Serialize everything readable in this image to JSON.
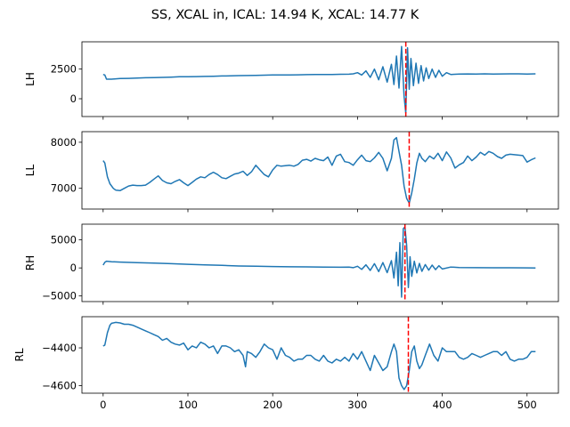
{
  "figure": {
    "title": "SS, XCAL in, ICAL: 14.94 K, XCAL: 14.77 K"
  },
  "chart_data": [
    {
      "type": "line",
      "ylabel": "LH",
      "xlim": [
        -25,
        537
      ],
      "ylim": [
        -1500,
        4800
      ],
      "yticks": [
        0,
        2500
      ],
      "show_xtick_labels": false,
      "marker_x": 357,
      "series_color": "#1f77b4",
      "marker_color": "#ff0000",
      "series": [
        {
          "x": [
            0,
            2,
            4,
            10,
            20,
            30,
            40,
            50,
            60,
            70,
            80,
            90,
            100,
            110,
            120,
            130,
            140,
            150,
            160,
            170,
            180,
            190,
            200,
            210,
            220,
            230,
            240,
            250,
            260,
            270,
            280,
            290,
            295,
            300,
            305,
            310,
            315,
            320,
            325,
            330,
            335,
            340,
            343,
            346,
            349,
            352,
            355,
            357,
            359,
            361,
            363,
            366,
            369,
            372,
            375,
            378,
            381,
            384,
            388,
            392,
            396,
            400,
            405,
            410,
            420,
            430,
            440,
            450,
            460,
            470,
            480,
            490,
            500,
            510
          ],
          "y": [
            2050,
            2000,
            1650,
            1650,
            1700,
            1720,
            1750,
            1770,
            1780,
            1800,
            1820,
            1850,
            1860,
            1870,
            1880,
            1900,
            1920,
            1930,
            1950,
            1960,
            1970,
            1990,
            2000,
            2000,
            2010,
            2020,
            2030,
            2040,
            2050,
            2050,
            2060,
            2070,
            2100,
            2200,
            2000,
            2350,
            1800,
            2500,
            1600,
            2700,
            1400,
            2900,
            1200,
            3600,
            900,
            4400,
            200,
            -1200,
            4300,
            800,
            3400,
            1100,
            3000,
            1300,
            2800,
            1500,
            2600,
            1700,
            2500,
            1800,
            2400,
            1900,
            2200,
            2050,
            2080,
            2090,
            2080,
            2100,
            2080,
            2090,
            2100,
            2100,
            2080,
            2100
          ]
        }
      ]
    },
    {
      "type": "line",
      "ylabel": "LL",
      "xlim": [
        -25,
        537
      ],
      "ylim": [
        6550,
        8230
      ],
      "yticks": [
        7000,
        8000
      ],
      "show_xtick_labels": false,
      "marker_x": 361,
      "series_color": "#1f77b4",
      "marker_color": "#ff0000",
      "series": [
        {
          "x": [
            0,
            2,
            5,
            8,
            12,
            15,
            20,
            25,
            30,
            35,
            40,
            45,
            50,
            55,
            60,
            65,
            70,
            75,
            80,
            85,
            90,
            95,
            100,
            105,
            110,
            115,
            120,
            125,
            130,
            135,
            140,
            145,
            150,
            155,
            160,
            165,
            170,
            175,
            180,
            185,
            190,
            195,
            200,
            205,
            210,
            215,
            220,
            225,
            230,
            235,
            240,
            245,
            250,
            255,
            260,
            265,
            270,
            275,
            280,
            285,
            290,
            295,
            300,
            305,
            310,
            315,
            320,
            325,
            330,
            335,
            340,
            343,
            346,
            349,
            352,
            355,
            358,
            361,
            364,
            367,
            370,
            373,
            376,
            380,
            385,
            390,
            395,
            400,
            405,
            410,
            415,
            420,
            425,
            430,
            435,
            440,
            445,
            450,
            455,
            460,
            465,
            470,
            475,
            480,
            485,
            490,
            495,
            500,
            505,
            510
          ],
          "y": [
            7600,
            7550,
            7250,
            7100,
            7000,
            6960,
            6950,
            7000,
            7050,
            7070,
            7060,
            7060,
            7070,
            7130,
            7200,
            7270,
            7170,
            7120,
            7100,
            7150,
            7190,
            7120,
            7060,
            7130,
            7200,
            7250,
            7230,
            7300,
            7350,
            7300,
            7230,
            7210,
            7260,
            7310,
            7330,
            7370,
            7280,
            7360,
            7500,
            7400,
            7300,
            7250,
            7400,
            7500,
            7480,
            7490,
            7500,
            7480,
            7520,
            7610,
            7630,
            7590,
            7650,
            7620,
            7600,
            7680,
            7500,
            7700,
            7740,
            7580,
            7560,
            7500,
            7620,
            7720,
            7600,
            7580,
            7660,
            7780,
            7650,
            7380,
            7650,
            8050,
            8100,
            7800,
            7500,
            7050,
            6780,
            6680,
            6900,
            7200,
            7550,
            7760,
            7650,
            7580,
            7700,
            7640,
            7760,
            7600,
            7790,
            7660,
            7440,
            7510,
            7560,
            7700,
            7600,
            7680,
            7780,
            7720,
            7800,
            7760,
            7690,
            7650,
            7720,
            7740,
            7730,
            7720,
            7710,
            7570,
            7620,
            7660
          ]
        }
      ]
    },
    {
      "type": "line",
      "ylabel": "RH",
      "xlim": [
        -25,
        537
      ],
      "ylim": [
        -6000,
        7800
      ],
      "yticks": [
        -5000,
        0,
        5000
      ],
      "show_xtick_labels": false,
      "marker_x": 356,
      "series_color": "#1f77b4",
      "marker_color": "#ff0000",
      "series": [
        {
          "x": [
            0,
            2,
            4,
            10,
            20,
            40,
            60,
            80,
            100,
            120,
            140,
            160,
            180,
            200,
            220,
            240,
            260,
            280,
            290,
            295,
            300,
            305,
            310,
            315,
            320,
            325,
            330,
            335,
            340,
            343,
            346,
            348,
            350,
            352,
            354,
            356,
            358,
            360,
            362,
            364,
            367,
            370,
            373,
            376,
            380,
            384,
            388,
            392,
            396,
            400,
            410,
            420,
            440,
            460,
            480,
            500,
            510
          ],
          "y": [
            500,
            1000,
            1200,
            1100,
            1050,
            950,
            850,
            750,
            650,
            550,
            450,
            350,
            300,
            250,
            200,
            180,
            150,
            130,
            160,
            40,
            300,
            -250,
            550,
            -450,
            750,
            -650,
            950,
            -850,
            1300,
            -1800,
            2800,
            -3200,
            4500,
            -5200,
            7000,
            7300,
            4000,
            -3500,
            2000,
            -1500,
            1200,
            -900,
            800,
            -600,
            600,
            -400,
            500,
            -300,
            400,
            -200,
            150,
            80,
            50,
            30,
            20,
            10,
            0
          ]
        }
      ]
    },
    {
      "type": "line",
      "ylabel": "RL",
      "xlim": [
        -25,
        537
      ],
      "ylim": [
        -4640,
        -4235
      ],
      "yticks": [
        -4600,
        -4400
      ],
      "show_xtick_labels": true,
      "xticks": [
        0,
        100,
        200,
        300,
        400,
        500
      ],
      "marker_x": 360,
      "series_color": "#1f77b4",
      "marker_color": "#ff0000",
      "series": [
        {
          "x": [
            0,
            2,
            5,
            8,
            10,
            15,
            20,
            25,
            30,
            35,
            40,
            45,
            50,
            55,
            60,
            65,
            70,
            75,
            80,
            85,
            90,
            95,
            100,
            105,
            110,
            115,
            120,
            125,
            130,
            135,
            140,
            145,
            150,
            155,
            160,
            165,
            168,
            170,
            175,
            180,
            185,
            190,
            195,
            200,
            205,
            210,
            215,
            220,
            225,
            230,
            235,
            240,
            245,
            250,
            255,
            260,
            265,
            270,
            275,
            280,
            285,
            290,
            295,
            300,
            305,
            310,
            315,
            320,
            325,
            330,
            335,
            340,
            343,
            346,
            349,
            352,
            355,
            358,
            361,
            364,
            367,
            370,
            373,
            376,
            380,
            385,
            390,
            395,
            400,
            405,
            410,
            415,
            420,
            425,
            430,
            435,
            440,
            445,
            450,
            455,
            460,
            465,
            470,
            475,
            480,
            485,
            490,
            495,
            500,
            505,
            510
          ],
          "y": [
            -4390,
            -4385,
            -4320,
            -4280,
            -4270,
            -4265,
            -4268,
            -4275,
            -4275,
            -4280,
            -4290,
            -4300,
            -4310,
            -4320,
            -4330,
            -4340,
            -4360,
            -4350,
            -4370,
            -4380,
            -4385,
            -4375,
            -4410,
            -4390,
            -4400,
            -4370,
            -4380,
            -4400,
            -4390,
            -4430,
            -4390,
            -4390,
            -4400,
            -4420,
            -4410,
            -4440,
            -4500,
            -4420,
            -4430,
            -4450,
            -4420,
            -4380,
            -4400,
            -4410,
            -4460,
            -4400,
            -4440,
            -4450,
            -4470,
            -4460,
            -4460,
            -4440,
            -4440,
            -4460,
            -4470,
            -4440,
            -4470,
            -4480,
            -4460,
            -4470,
            -4450,
            -4470,
            -4430,
            -4460,
            -4420,
            -4470,
            -4520,
            -4440,
            -4480,
            -4520,
            -4500,
            -4420,
            -4380,
            -4420,
            -4560,
            -4600,
            -4620,
            -4600,
            -4520,
            -4420,
            -4390,
            -4470,
            -4510,
            -4490,
            -4440,
            -4380,
            -4440,
            -4470,
            -4400,
            -4420,
            -4420,
            -4420,
            -4450,
            -4460,
            -4450,
            -4430,
            -4440,
            -4450,
            -4440,
            -4430,
            -4420,
            -4420,
            -4440,
            -4420,
            -4460,
            -4470,
            -4460,
            -4460,
            -4450,
            -4420,
            -4420
          ]
        }
      ]
    }
  ]
}
